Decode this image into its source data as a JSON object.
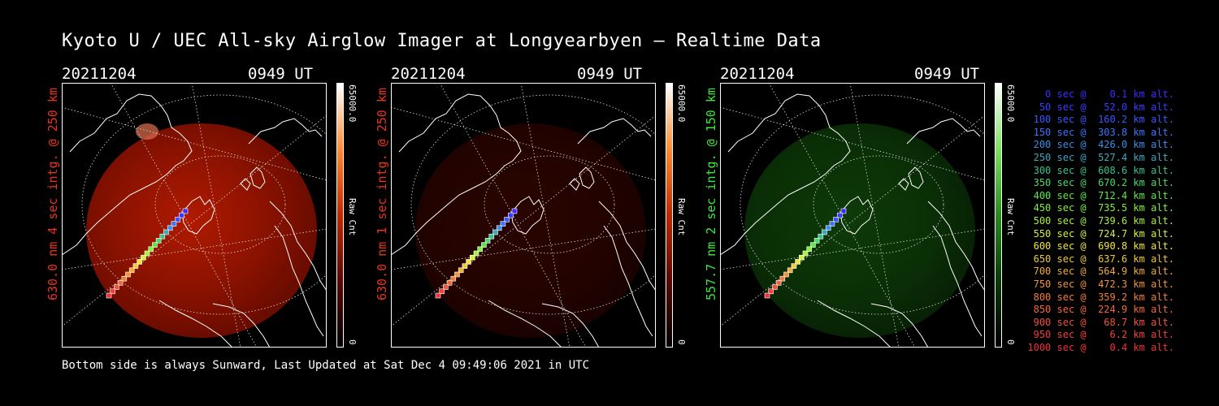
{
  "title": "Kyoto U / UEC All-sky Airglow Imager at Longyearbyen — Realtime Data",
  "panels": [
    {
      "date": "20211204",
      "time": "0949 UT",
      "ylabel": "630.0 nm 4 sec intg. @ 250 km",
      "label_color": "#e8341c",
      "cbar_max": "65000.0",
      "cbar_unit": "Raw Cnt",
      "cbar_min": "0",
      "glow": "red-bright"
    },
    {
      "date": "20211204",
      "time": "0949 UT",
      "ylabel": "630.0 nm 1 sec intg. @ 250 km",
      "label_color": "#e8341c",
      "cbar_max": "65000.0",
      "cbar_unit": "Raw Cnt",
      "cbar_min": "0",
      "glow": "red-dim"
    },
    {
      "date": "20211204",
      "time": "0949 UT",
      "ylabel": "557.7 nm 2 sec intg. @ 150 km",
      "label_color": "#3ee83a",
      "cbar_max": "65000.0",
      "cbar_unit": "Raw Cnt",
      "cbar_min": "0",
      "glow": "green"
    }
  ],
  "footer": "Bottom side is always Sunward, Last Updated at Sat Dec  4 09:49:06 2021 in UTC",
  "legend": [
    {
      "text": "   0 sec @    0.1 km alt.",
      "color": "#3a2cff"
    },
    {
      "text": "  50 sec @   52.0 km alt.",
      "color": "#3a3cff"
    },
    {
      "text": " 100 sec @  160.2 km alt.",
      "color": "#3a56ff"
    },
    {
      "text": " 150 sec @  303.8 km alt.",
      "color": "#3a76ff"
    },
    {
      "text": " 200 sec @  426.0 km alt.",
      "color": "#3a8fe8"
    },
    {
      "text": " 250 sec @  527.4 km alt.",
      "color": "#3aa8c0"
    },
    {
      "text": " 300 sec @  608.6 km alt.",
      "color": "#3ac090"
    },
    {
      "text": " 350 sec @  670.2 km alt.",
      "color": "#4ad86a"
    },
    {
      "text": " 400 sec @  712.4 km alt.",
      "color": "#5ae84a"
    },
    {
      "text": " 450 sec @  735.5 km alt.",
      "color": "#7ef03a"
    },
    {
      "text": " 500 sec @  739.6 km alt.",
      "color": "#a8f03a"
    },
    {
      "text": " 550 sec @  724.7 km alt.",
      "color": "#d2f03a"
    },
    {
      "text": " 600 sec @  690.8 km alt.",
      "color": "#f0e43a"
    },
    {
      "text": " 650 sec @  637.6 km alt.",
      "color": "#f0c83a"
    },
    {
      "text": " 700 sec @  564.9 km alt.",
      "color": "#f0ac3a"
    },
    {
      "text": " 750 sec @  472.3 km alt.",
      "color": "#f0943a"
    },
    {
      "text": " 800 sec @  359.2 km alt.",
      "color": "#f07e3a"
    },
    {
      "text": " 850 sec @  224.9 km alt.",
      "color": "#f0683a"
    },
    {
      "text": " 900 sec @   68.7 km alt.",
      "color": "#f0523a"
    },
    {
      "text": " 950 sec @    6.2 km alt.",
      "color": "#f0403a"
    },
    {
      "text": "1000 sec @    0.4 km alt.",
      "color": "#f0303a"
    }
  ]
}
